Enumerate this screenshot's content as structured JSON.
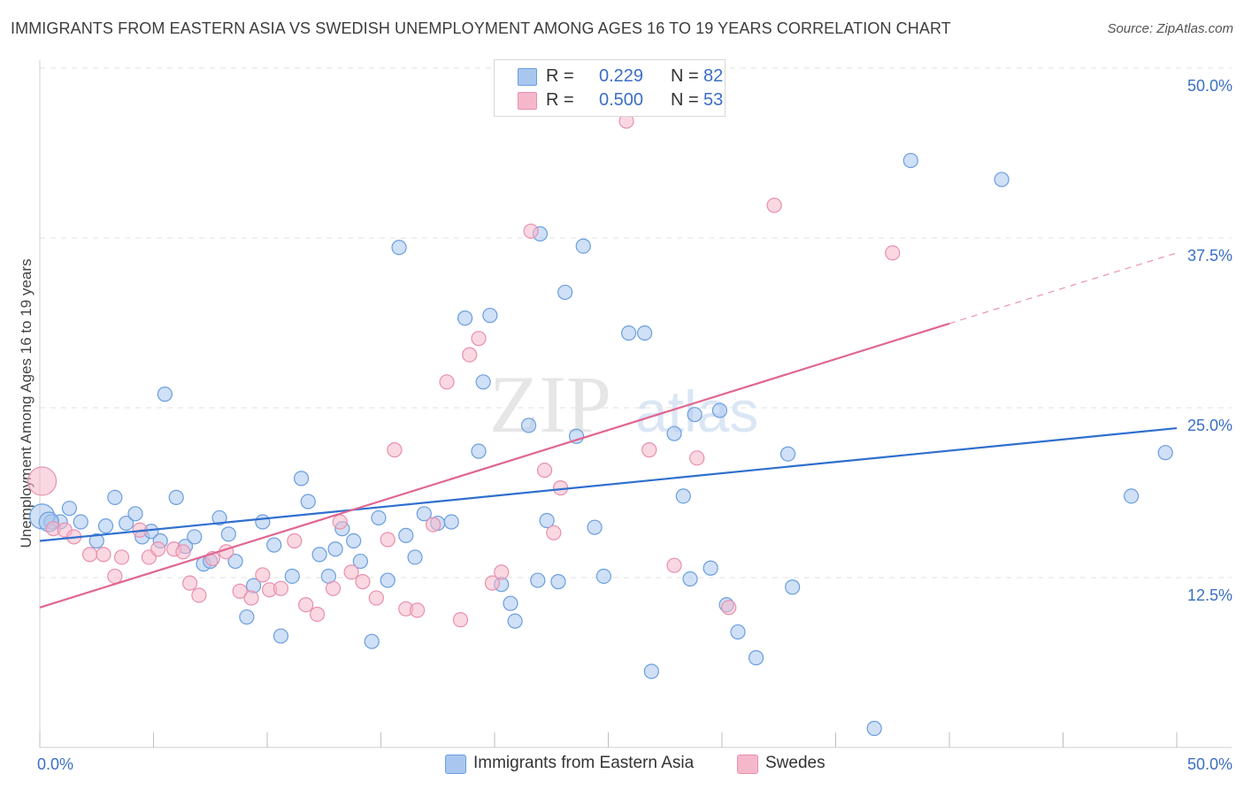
{
  "header": {
    "title": "IMMIGRANTS FROM EASTERN ASIA VS SWEDISH UNEMPLOYMENT AMONG AGES 16 TO 19 YEARS CORRELATION CHART",
    "source": "Source: ZipAtlas.com"
  },
  "watermark": {
    "zip": "ZIP",
    "atlas": "atlas"
  },
  "legend": {
    "rows": [
      {
        "r_label": "R =",
        "r_value": "0.229",
        "n_label": "N =",
        "n_value": "82"
      },
      {
        "r_label": "R =",
        "r_value": "0.500",
        "n_label": "N =",
        "n_value": "53"
      }
    ],
    "bottom": [
      "Immigrants from Eastern Asia",
      "Swedes"
    ]
  },
  "colors": {
    "blue_fill": "#a9c6ee",
    "blue_stroke": "#6a9ee0",
    "blue_line": "#2f6fcf",
    "pink_fill": "#f5b8cb",
    "pink_stroke": "#e98fae",
    "pink_line": "#e0668f",
    "axis_label": "#3b6fc4",
    "grid": "#e2e2e2"
  },
  "chart_data": {
    "type": "scatter",
    "title": "IMMIGRANTS FROM EASTERN ASIA VS SWEDISH UNEMPLOYMENT AMONG AGES 16 TO 19 YEARS CORRELATION CHART",
    "xlabel": "",
    "ylabel": "Unemployment Among Ages 16 to 19 years",
    "xlim": [
      0,
      50
    ],
    "ylim": [
      0,
      50
    ],
    "x_tick_labels": [
      "0.0%",
      "50.0%"
    ],
    "y_ticks": [
      12.5,
      25.0,
      37.5,
      50.0
    ],
    "y_tick_labels": [
      "12.5%",
      "25.0%",
      "37.5%",
      "50.0%"
    ],
    "grid": true,
    "legend_position": "top-center",
    "series": [
      {
        "name": "Immigrants from Eastern Asia",
        "R": 0.229,
        "N": 82,
        "trend": {
          "x": [
            0,
            50
          ],
          "y": [
            15.2,
            23.5
          ]
        },
        "points": [
          [
            0.1,
            17.0
          ],
          [
            0.5,
            16.6
          ],
          [
            0.9,
            16.6
          ],
          [
            1.3,
            17.6
          ],
          [
            1.8,
            16.6
          ],
          [
            2.5,
            15.2
          ],
          [
            2.9,
            16.3
          ],
          [
            3.3,
            18.4
          ],
          [
            3.8,
            16.5
          ],
          [
            4.2,
            17.2
          ],
          [
            4.5,
            15.5
          ],
          [
            4.9,
            15.9
          ],
          [
            5.3,
            15.2
          ],
          [
            5.5,
            26.0
          ],
          [
            6.0,
            18.4
          ],
          [
            6.4,
            14.8
          ],
          [
            6.8,
            15.5
          ],
          [
            7.2,
            13.5
          ],
          [
            7.5,
            13.7
          ],
          [
            7.9,
            16.9
          ],
          [
            8.3,
            15.7
          ],
          [
            8.6,
            13.7
          ],
          [
            9.1,
            9.6
          ],
          [
            9.4,
            11.9
          ],
          [
            9.8,
            16.6
          ],
          [
            10.3,
            14.9
          ],
          [
            10.6,
            8.2
          ],
          [
            11.1,
            12.6
          ],
          [
            11.5,
            19.8
          ],
          [
            11.8,
            18.1
          ],
          [
            12.3,
            14.2
          ],
          [
            12.7,
            12.6
          ],
          [
            13.0,
            14.6
          ],
          [
            13.3,
            16.1
          ],
          [
            13.8,
            15.2
          ],
          [
            14.1,
            13.7
          ],
          [
            14.6,
            7.8
          ],
          [
            14.9,
            16.9
          ],
          [
            15.3,
            12.3
          ],
          [
            15.8,
            36.8
          ],
          [
            16.1,
            15.6
          ],
          [
            16.5,
            14.0
          ],
          [
            16.9,
            17.2
          ],
          [
            17.5,
            16.5
          ],
          [
            18.1,
            16.6
          ],
          [
            18.7,
            31.6
          ],
          [
            19.3,
            21.8
          ],
          [
            19.5,
            26.9
          ],
          [
            19.8,
            31.8
          ],
          [
            20.3,
            12.0
          ],
          [
            20.7,
            10.6
          ],
          [
            20.9,
            9.3
          ],
          [
            21.5,
            23.7
          ],
          [
            21.9,
            12.3
          ],
          [
            22.0,
            37.8
          ],
          [
            22.3,
            16.7
          ],
          [
            22.8,
            12.2
          ],
          [
            23.1,
            33.5
          ],
          [
            23.6,
            22.9
          ],
          [
            23.9,
            36.9
          ],
          [
            24.4,
            16.2
          ],
          [
            24.8,
            12.6
          ],
          [
            25.9,
            30.5
          ],
          [
            26.6,
            30.5
          ],
          [
            26.9,
            5.6
          ],
          [
            27.9,
            23.1
          ],
          [
            28.3,
            18.5
          ],
          [
            28.6,
            12.4
          ],
          [
            28.8,
            24.5
          ],
          [
            29.5,
            13.2
          ],
          [
            29.9,
            24.8
          ],
          [
            30.2,
            10.5
          ],
          [
            30.7,
            8.5
          ],
          [
            31.5,
            6.6
          ],
          [
            32.9,
            21.6
          ],
          [
            33.1,
            11.8
          ],
          [
            36.7,
            1.4
          ],
          [
            38.3,
            43.2
          ],
          [
            42.3,
            41.8
          ],
          [
            48.0,
            18.5
          ],
          [
            49.5,
            21.7
          ],
          [
            0.4,
            16.6
          ]
        ]
      },
      {
        "name": "Swedes",
        "R": 0.5,
        "N": 53,
        "trend": {
          "x": [
            0,
            40
          ],
          "y": [
            10.3,
            31.2
          ]
        },
        "trend_dashed": {
          "x": [
            40,
            50
          ],
          "y": [
            31.2,
            36.4
          ]
        },
        "points": [
          [
            0.1,
            19.6
          ],
          [
            0.6,
            16.1
          ],
          [
            1.1,
            16.0
          ],
          [
            1.5,
            15.5
          ],
          [
            2.2,
            14.2
          ],
          [
            2.8,
            14.2
          ],
          [
            3.3,
            12.6
          ],
          [
            3.6,
            14.0
          ],
          [
            4.4,
            16.0
          ],
          [
            4.8,
            14.0
          ],
          [
            5.2,
            14.6
          ],
          [
            5.9,
            14.6
          ],
          [
            6.3,
            14.4
          ],
          [
            6.6,
            12.1
          ],
          [
            7.0,
            11.2
          ],
          [
            7.6,
            13.9
          ],
          [
            8.2,
            14.4
          ],
          [
            8.8,
            11.5
          ],
          [
            9.3,
            11.0
          ],
          [
            9.8,
            12.7
          ],
          [
            10.1,
            11.6
          ],
          [
            10.6,
            11.7
          ],
          [
            11.2,
            15.2
          ],
          [
            11.7,
            10.5
          ],
          [
            12.2,
            9.8
          ],
          [
            12.9,
            11.7
          ],
          [
            13.2,
            16.6
          ],
          [
            13.7,
            12.9
          ],
          [
            14.2,
            12.2
          ],
          [
            14.8,
            11.0
          ],
          [
            15.3,
            15.3
          ],
          [
            15.6,
            21.9
          ],
          [
            16.1,
            10.2
          ],
          [
            16.6,
            10.1
          ],
          [
            17.3,
            16.4
          ],
          [
            17.9,
            26.9
          ],
          [
            18.5,
            9.4
          ],
          [
            18.9,
            28.9
          ],
          [
            19.3,
            30.1
          ],
          [
            19.9,
            12.1
          ],
          [
            20.3,
            12.9
          ],
          [
            21.0,
            50.0
          ],
          [
            21.6,
            38.0
          ],
          [
            22.2,
            20.4
          ],
          [
            22.6,
            15.8
          ],
          [
            22.9,
            19.1
          ],
          [
            25.8,
            46.1
          ],
          [
            26.8,
            21.9
          ],
          [
            27.9,
            13.4
          ],
          [
            28.9,
            21.3
          ],
          [
            30.3,
            10.3
          ],
          [
            32.3,
            39.9
          ],
          [
            37.5,
            36.4
          ]
        ]
      }
    ]
  }
}
